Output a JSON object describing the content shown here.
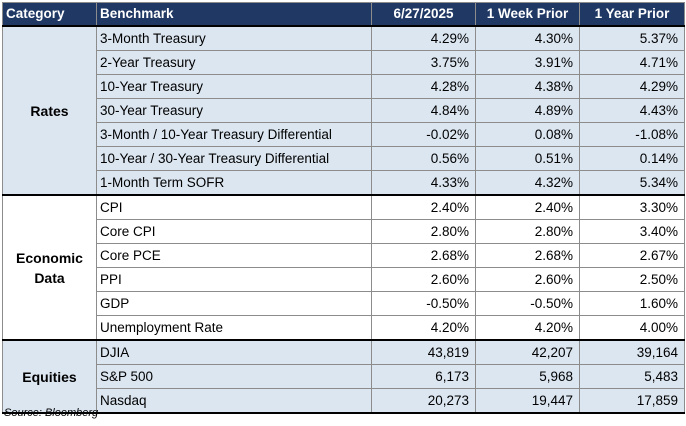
{
  "headers": [
    "Category",
    "Benchmark",
    "6/27/2025",
    "1 Week Prior",
    "1 Year Prior"
  ],
  "groups": [
    {
      "category": "Rates",
      "shaded": true,
      "rows": [
        {
          "name": "3-Month Treasury",
          "current": "4.29%",
          "week": "4.30%",
          "year": "5.37%"
        },
        {
          "name": "2-Year Treasury",
          "current": "3.75%",
          "week": "3.91%",
          "year": "4.71%"
        },
        {
          "name": "10-Year Treasury",
          "current": "4.28%",
          "week": "4.38%",
          "year": "4.29%"
        },
        {
          "name": "30-Year Treasury",
          "current": "4.84%",
          "week": "4.89%",
          "year": "4.43%"
        },
        {
          "name": "3-Month / 10-Year Treasury Differential",
          "current": "-0.02%",
          "week": "0.08%",
          "year": "-1.08%"
        },
        {
          "name": "10-Year / 30-Year Treasury Differential",
          "current": "0.56%",
          "week": "0.51%",
          "year": "0.14%"
        },
        {
          "name": "1-Month Term SOFR",
          "current": "4.33%",
          "week": "4.32%",
          "year": "5.34%"
        }
      ]
    },
    {
      "category": "Economic Data",
      "shaded": false,
      "rows": [
        {
          "name": "CPI",
          "current": "2.40%",
          "week": "2.40%",
          "year": "3.30%"
        },
        {
          "name": "Core CPI",
          "current": "2.80%",
          "week": "2.80%",
          "year": "3.40%"
        },
        {
          "name": "Core PCE",
          "current": "2.68%",
          "week": "2.68%",
          "year": "2.67%"
        },
        {
          "name": "PPI",
          "current": "2.60%",
          "week": "2.60%",
          "year": "2.50%"
        },
        {
          "name": "GDP",
          "current": "-0.50%",
          "week": "-0.50%",
          "year": "1.60%"
        },
        {
          "name": "Unemployment Rate",
          "current": "4.20%",
          "week": "4.20%",
          "year": "4.00%"
        }
      ]
    },
    {
      "category": "Equities",
      "shaded": true,
      "rows": [
        {
          "name": "DJIA",
          "current": "43,819",
          "week": "42,207",
          "year": "39,164"
        },
        {
          "name": "S&P 500",
          "current": "6,173",
          "week": "5,968",
          "year": "5,483"
        },
        {
          "name": "Nasdaq",
          "current": "20,273",
          "week": "19,447",
          "year": "17,859"
        }
      ]
    }
  ],
  "source": "Source: Bloomberg",
  "colors": {
    "header_bg": "#1f3864",
    "header_text": "#ffffff",
    "shade": "#dce6f1"
  }
}
